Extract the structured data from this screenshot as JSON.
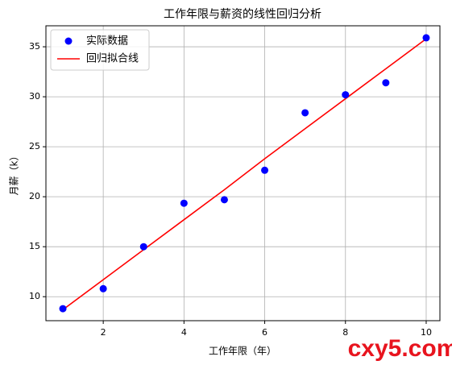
{
  "chart_data": {
    "type": "scatter",
    "title": "工作年限与薪资的线性回归分析",
    "x_label": "工作年限（年）",
    "y_label": "月薪（k）",
    "series": [
      {
        "name": "实际数据",
        "type": "scatter",
        "color": "#0000ff",
        "x": [
          1,
          2,
          3,
          4,
          5,
          6,
          7,
          8,
          9,
          10
        ],
        "values": [
          8.8,
          10.8,
          15.0,
          19.35,
          19.7,
          22.65,
          28.4,
          30.2,
          31.4,
          35.9
        ]
      },
      {
        "name": "回归拟合线",
        "type": "line",
        "color": "#ff0000",
        "x": [
          1,
          2,
          3,
          4,
          5,
          6,
          7,
          8,
          9,
          10
        ],
        "values": [
          8.7,
          11.7,
          14.7,
          17.7,
          20.7,
          23.8,
          26.8,
          29.8,
          32.8,
          35.8
        ]
      }
    ],
    "xlim": [
      0.58,
      10.34
    ],
    "xticks": [
      2,
      4,
      6,
      8,
      10
    ],
    "ylim": [
      7.6,
      37.1
    ],
    "yticks": [
      10,
      15,
      20,
      25,
      30,
      35
    ],
    "grid": true,
    "legend": "upper left",
    "watermark": "cxy5.com"
  }
}
